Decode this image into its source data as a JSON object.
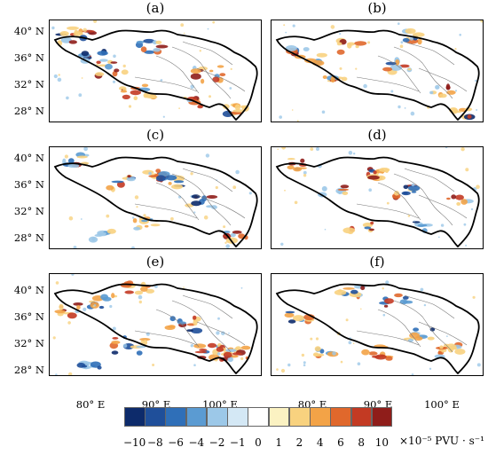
{
  "panels": [
    {
      "label": "(a)"
    },
    {
      "label": "(b)"
    },
    {
      "label": "(c)"
    },
    {
      "label": "(d)"
    },
    {
      "label": "(e)"
    },
    {
      "label": "(f)"
    }
  ],
  "lat_ticks": [
    "40° N",
    "36° N",
    "32° N",
    "28° N"
  ],
  "lon_ticks": [
    "80° E",
    "90° E",
    "100° E"
  ],
  "colorbar": {
    "labels": [
      "−10",
      "−8",
      "−6",
      "−4",
      "−2",
      "−1",
      "0",
      "1",
      "2",
      "4",
      "6",
      "8",
      "10"
    ],
    "colors": [
      "#0d2b6b",
      "#1f4f9a",
      "#2f6fb8",
      "#5b9bd2",
      "#9cc8e8",
      "#d4e8f5",
      "#ffffff",
      "#fbf2c2",
      "#f8d27f",
      "#f3a347",
      "#e0682c",
      "#c33a23",
      "#8f1d1a"
    ],
    "unit": "×10⁻⁵ PVU · s⁻¹"
  }
}
